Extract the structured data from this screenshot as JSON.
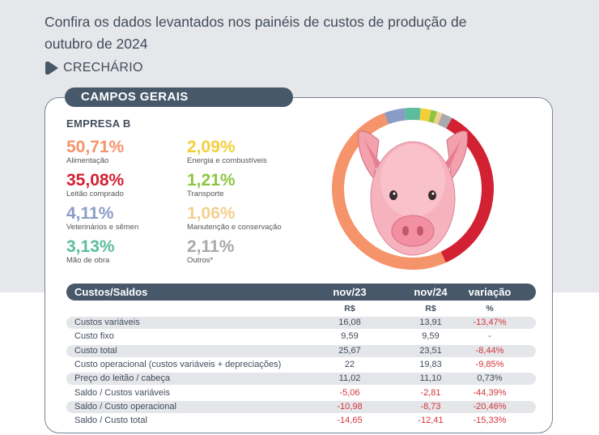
{
  "headline": "Confira os dados levantados nos painéis de custos de produção de outubro de 2024",
  "section": "CRECHÁRIO",
  "region": "CAMPOS GERAIS",
  "company": "EMPRESA B",
  "colors": {
    "dark": "#46586a",
    "negative": "#d3343a",
    "shade": "#e4e6e9"
  },
  "stats": [
    {
      "pct": "50,71%",
      "label": "Alimentação",
      "color": "#f5936a"
    },
    {
      "pct": "2,09%",
      "label": "Energia e combustíveis",
      "color": "#f2cf3a"
    },
    {
      "pct": "35,08%",
      "label": "Leitão comprado",
      "color": "#d22133"
    },
    {
      "pct": "1,21%",
      "label": "Transporte",
      "color": "#8cc63f"
    },
    {
      "pct": "4,11%",
      "label": "Veterinários e sêmen",
      "color": "#8a9bc6"
    },
    {
      "pct": "1,06%",
      "label": "Manutenção e conservação",
      "color": "#f2cf8e"
    },
    {
      "pct": "3,13%",
      "label": "Mão de obra",
      "color": "#5bbd9c"
    },
    {
      "pct": "2,11%",
      "label": "Outros*",
      "color": "#a7a9ac"
    }
  ],
  "chart_data": {
    "type": "pie",
    "categories": [
      "Alimentação",
      "Leitão comprado",
      "Veterinários e sêmen",
      "Mão de obra",
      "Energia e combustíveis",
      "Transporte",
      "Manutenção e conservação",
      "Outros*"
    ],
    "values": [
      50.71,
      35.08,
      4.11,
      3.13,
      2.09,
      1.21,
      1.06,
      2.11
    ],
    "colors": [
      "#f5936a",
      "#d22133",
      "#8a9bc6",
      "#5bbd9c",
      "#f2cf3a",
      "#8cc63f",
      "#f2cf8e",
      "#a7a9ac"
    ]
  },
  "table": {
    "headers": [
      "Custos/Saldos",
      "nov/23",
      "nov/24",
      "variação"
    ],
    "units": [
      "",
      "R$",
      "R$",
      "%"
    ],
    "rows": [
      {
        "label": "Custos variáveis",
        "a": "16,08",
        "b": "13,91",
        "v": "-13,47%",
        "neg_a": false,
        "neg_b": false,
        "neg_v": true
      },
      {
        "label": "Custo fixo",
        "a": "9,59",
        "b": "9,59",
        "v": "-",
        "neg_a": false,
        "neg_b": false,
        "neg_v": true
      },
      {
        "label": "Custo total",
        "a": "25,67",
        "b": "23,51",
        "v": "-8,44%",
        "neg_a": false,
        "neg_b": false,
        "neg_v": true
      },
      {
        "label": "Custo operacional (custos variáveis + depreciações)",
        "a": "22",
        "b": "19,83",
        "v": "-9,85%",
        "neg_a": false,
        "neg_b": false,
        "neg_v": true
      },
      {
        "label": "Preço do leitão / cabeça",
        "a": "11,02",
        "b": "11,10",
        "v": "0,73%",
        "neg_a": false,
        "neg_b": false,
        "neg_v": false
      },
      {
        "label": "Saldo / Custos variáveis",
        "a": "-5,06",
        "b": "-2,81",
        "v": "-44,39%",
        "neg_a": true,
        "neg_b": true,
        "neg_v": true
      },
      {
        "label": "Saldo / Custo operacional",
        "a": "-10,98",
        "b": "-8,73",
        "v": "-20,46%",
        "neg_a": true,
        "neg_b": true,
        "neg_v": true
      },
      {
        "label": "Saldo / Custo total",
        "a": "-14,65",
        "b": "-12,41",
        "v": "-15,33%",
        "neg_a": true,
        "neg_b": true,
        "neg_v": true
      }
    ]
  }
}
